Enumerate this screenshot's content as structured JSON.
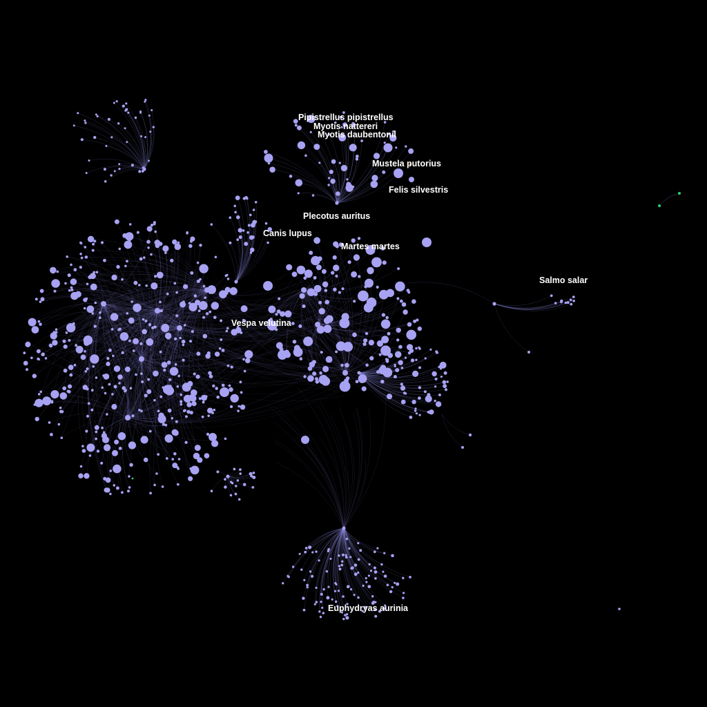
{
  "diagram": {
    "type": "network-graph",
    "background": "#000000",
    "node_color": "#a7a2f2",
    "edge_color": "#8c86e0",
    "accent_color": "#2bd16a",
    "highlight_color": "#e8823a",
    "label_color": "#ffffff",
    "labels": [
      {
        "id": "pipistrellus",
        "text": "Pipistrellus pipistrellus"
      },
      {
        "id": "myotis-nattereri",
        "text": "Myotis nattereri"
      },
      {
        "id": "myotis-daubentonii",
        "text": "Myotis daubentonii"
      },
      {
        "id": "mustela-putorius",
        "text": "Mustela putorius"
      },
      {
        "id": "felis-silvestris",
        "text": "Felis silvestris"
      },
      {
        "id": "plecotus-auritus",
        "text": "Plecotus auritus"
      },
      {
        "id": "canis-lupus",
        "text": "Canis lupus"
      },
      {
        "id": "martes-martes",
        "text": "Martes martes"
      },
      {
        "id": "salmo-salar",
        "text": "Salmo salar"
      },
      {
        "id": "vespa-velutina",
        "text": "Vespa velutina"
      },
      {
        "id": "euphydryas-aurinia",
        "text": "Euphydryas aurinia"
      }
    ]
  }
}
